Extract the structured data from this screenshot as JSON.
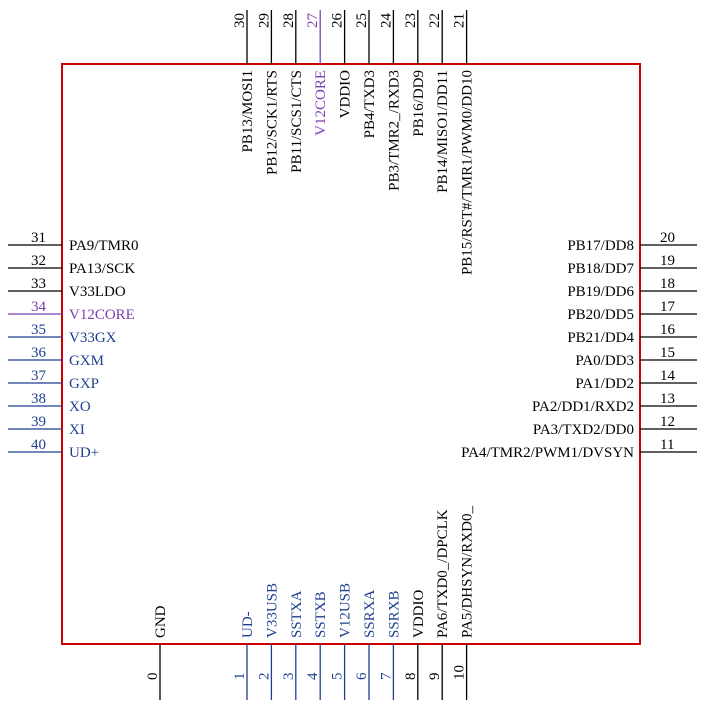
{
  "colors": {
    "body_outline": "#cc0000",
    "pin_black": "#000000",
    "pin_blue": "#1f3f8f",
    "pin_purple": "#7a3fb0",
    "text_black": "#000000",
    "text_blue": "#1f3f8f",
    "text_purple": "#7a3fb0"
  },
  "pins": {
    "left": [
      {
        "num": "31",
        "name": "PA9/TMR0",
        "color": "black"
      },
      {
        "num": "32",
        "name": "PA13/SCK",
        "color": "black"
      },
      {
        "num": "33",
        "name": "V33LDO",
        "color": "black"
      },
      {
        "num": "34",
        "name": "V12CORE",
        "color": "purple"
      },
      {
        "num": "35",
        "name": "V33GX",
        "color": "blue"
      },
      {
        "num": "36",
        "name": "GXM",
        "color": "blue"
      },
      {
        "num": "37",
        "name": "GXP",
        "color": "blue"
      },
      {
        "num": "38",
        "name": "XO",
        "color": "blue"
      },
      {
        "num": "39",
        "name": "XI",
        "color": "blue"
      },
      {
        "num": "40",
        "name": "UD+",
        "color": "blue"
      }
    ],
    "right": [
      {
        "num": "20",
        "name": "PB17/DD8",
        "color": "black"
      },
      {
        "num": "19",
        "name": "PB18/DD7",
        "color": "black"
      },
      {
        "num": "18",
        "name": "PB19/DD6",
        "color": "black"
      },
      {
        "num": "17",
        "name": "PB20/DD5",
        "color": "black"
      },
      {
        "num": "16",
        "name": "PB21/DD4",
        "color": "black"
      },
      {
        "num": "15",
        "name": "PA0/DD3",
        "color": "black"
      },
      {
        "num": "14",
        "name": "PA1/DD2",
        "color": "black"
      },
      {
        "num": "13",
        "name": "PA2/DD1/RXD2",
        "color": "black"
      },
      {
        "num": "12",
        "name": "PA3/TXD2/DD0",
        "color": "black"
      },
      {
        "num": "11",
        "name": "PA4/TMR2/PWM1/DVSYN",
        "color": "black"
      }
    ],
    "top": [
      {
        "num": "30",
        "name": "PB13/MOSI1",
        "color": "black"
      },
      {
        "num": "29",
        "name": "PB12/SCK1/RTS",
        "color": "black"
      },
      {
        "num": "28",
        "name": "PB11/SCS1/CTS",
        "color": "black"
      },
      {
        "num": "27",
        "name": "V12CORE",
        "color": "purple"
      },
      {
        "num": "26",
        "name": "VDDIO",
        "color": "black"
      },
      {
        "num": "25",
        "name": "PB4/TXD3",
        "color": "black"
      },
      {
        "num": "24",
        "name": "PB3/TMR2_/RXD3",
        "color": "black"
      },
      {
        "num": "23",
        "name": "PB16/DD9",
        "color": "black"
      },
      {
        "num": "22",
        "name": "PB14/MISO1/DD11",
        "color": "black"
      },
      {
        "num": "21",
        "name": "PB15/RST#/TMR1/PWM0/DD10",
        "color": "black"
      }
    ],
    "bottom": [
      {
        "num": "0",
        "name": "GND",
        "color": "black"
      },
      {
        "num": "1",
        "name": "UD-",
        "color": "blue"
      },
      {
        "num": "2",
        "name": "V33USB",
        "color": "blue"
      },
      {
        "num": "3",
        "name": "SSTXA",
        "color": "blue"
      },
      {
        "num": "4",
        "name": "SSTXB",
        "color": "blue"
      },
      {
        "num": "5",
        "name": "V12USB",
        "color": "blue"
      },
      {
        "num": "6",
        "name": "SSRXA",
        "color": "blue"
      },
      {
        "num": "7",
        "name": "SSRXB",
        "color": "blue"
      },
      {
        "num": "8",
        "name": "VDDIO",
        "color": "black"
      },
      {
        "num": "9",
        "name": "PA6/TXD0_/DPCLK",
        "color": "black"
      },
      {
        "num": "10",
        "name": "PA5/DHSYN/RXD0_",
        "color": "black"
      }
    ]
  }
}
